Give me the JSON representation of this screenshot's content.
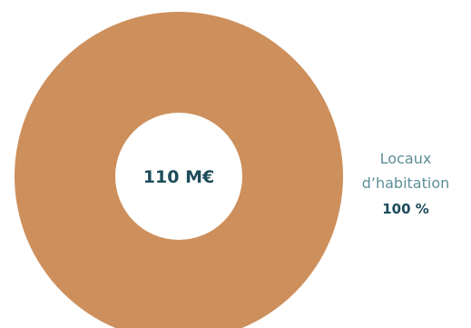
{
  "chart_data": {
    "type": "pie",
    "donut": true,
    "center_label": "110 M€",
    "slices": [
      {
        "label_lines": [
          "Locaux",
          "d’habitation"
        ],
        "percent_label": "100 %",
        "value": 100,
        "color": "#CD8F5C"
      }
    ]
  },
  "colors": {
    "center_text": "#1C4B5A",
    "label_text": "#5D8E99",
    "percent_text": "#1C4B5A",
    "hole": "#FFFFFF"
  }
}
